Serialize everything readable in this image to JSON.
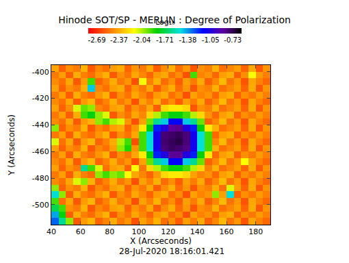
{
  "chart_data": {
    "type": "heatmap",
    "title": "Hinode SOT/SP - MERLIN : Degree of Polarization",
    "xlabel": "X (Arcseconds)",
    "ylabel": "Y (Arcseconds)",
    "annotation": "28-Jul-2020 18:16:01.421",
    "xlim": [
      40,
      190
    ],
    "ylim": [
      -515,
      -395
    ],
    "xticks": [
      40,
      60,
      80,
      100,
      120,
      140,
      160,
      180
    ],
    "yticks": [
      -500,
      -480,
      -460,
      -440,
      -420,
      -400
    ],
    "colorbar": {
      "title": "Log₁₀",
      "range": [
        -2.81,
        -0.6
      ],
      "ticks": [
        -2.69,
        -2.37,
        -2.04,
        -1.71,
        -1.38,
        -1.05,
        -0.73
      ]
    },
    "x": [
      42.5,
      47.5,
      52.5,
      57.5,
      62.5,
      67.5,
      72.5,
      77.5,
      82.5,
      87.5,
      92.5,
      97.5,
      102.5,
      107.5,
      112.5,
      117.5,
      122.5,
      127.5,
      132.5,
      137.5,
      142.5,
      147.5,
      152.5,
      157.5,
      162.5,
      167.5,
      172.5,
      177.5,
      182.5,
      187.5
    ],
    "y": [
      -512.5,
      -507.5,
      -502.5,
      -497.5,
      -492.5,
      -487.5,
      -482.5,
      -477.5,
      -472.5,
      -467.5,
      -462.5,
      -457.5,
      -452.5,
      -447.5,
      -442.5,
      -437.5,
      -432.5,
      -427.5,
      -422.5,
      -417.5,
      -412.5,
      -407.5,
      -402.5,
      -397.5
    ],
    "cells": [
      [
        -1.3,
        -1.6,
        -2.0,
        -2.58,
        -2.41,
        -2.34,
        -2.55,
        -2.47,
        -2.36,
        -2.5,
        -2.43,
        -2.6,
        -2.39,
        -2.48,
        -2.35,
        -2.53,
        -2.44,
        -2.57,
        -2.4,
        -2.49,
        -2.37,
        -2.56,
        -2.46,
        -2.33,
        -2.51,
        -2.42,
        -2.59,
        -2.38,
        -2.47,
        -2.54
      ],
      [
        -1.4,
        -1.8,
        -2.57,
        -2.36,
        -2.48,
        -2.53,
        -2.42,
        -2.35,
        -2.58,
        -2.44,
        -2.51,
        -2.38,
        -2.46,
        -2.55,
        -2.41,
        -2.37,
        -2.52,
        -2.45,
        -2.6,
        -2.39,
        -2.47,
        -2.43,
        -2.54,
        -2.4,
        -2.36,
        -2.56,
        -2.44,
        -2.5,
        -2.41,
        -2.48
      ],
      [
        -1.7,
        -1.9,
        -2.44,
        -2.49,
        -2.35,
        -2.58,
        -2.46,
        -2.52,
        -2.4,
        -2.37,
        -2.55,
        -2.43,
        -2.5,
        -2.38,
        -2.57,
        -2.45,
        -2.36,
        -2.53,
        -2.42,
        -2.59,
        -2.44,
        -2.48,
        -2.35,
        -2.52,
        -2.46,
        -2.4,
        -2.55,
        -2.37,
        -2.58,
        -2.43
      ],
      [
        -1.9,
        -2.52,
        -2.38,
        -2.58,
        -2.41,
        -2.34,
        -2.55,
        -2.47,
        -2.36,
        -2.5,
        -2.43,
        -2.6,
        -2.39,
        -2.48,
        -2.35,
        -2.53,
        -2.44,
        -2.57,
        -2.4,
        -2.49,
        -2.37,
        -2.56,
        -2.46,
        -2.33,
        -2.51,
        -2.42,
        -2.59,
        -2.38,
        -2.47,
        -2.54
      ],
      [
        -1.5,
        -2.0,
        -2.57,
        -2.36,
        -2.48,
        -2.53,
        -2.42,
        -2.35,
        -2.58,
        -2.44,
        -2.51,
        -2.38,
        -2.46,
        -2.55,
        -2.41,
        -2.37,
        -2.52,
        -2.45,
        -2.6,
        -2.39,
        -2.47,
        -2.43,
        -2.0,
        -2.4,
        -1.5,
        -2.56,
        -2.44,
        -2.5,
        -2.41,
        -2.48
      ],
      [
        -2.0,
        -2.56,
        -2.44,
        -2.49,
        -2.35,
        -2.58,
        -2.46,
        -2.52,
        -2.4,
        -2.37,
        -2.55,
        -2.43,
        -2.5,
        -2.38,
        -2.57,
        -2.45,
        -2.36,
        -2.53,
        -2.42,
        -2.59,
        -2.44,
        -2.48,
        -2.35,
        -2.52,
        -2.1,
        -2.4,
        -2.55,
        -2.37,
        -2.58,
        -2.43
      ],
      [
        -2.45,
        -2.52,
        -2.38,
        -2.1,
        -2.0,
        -2.34,
        -2.55,
        -2.47,
        -2.36,
        -2.5,
        -2.43,
        -2.6,
        -2.39,
        -2.48,
        -2.35,
        -2.53,
        -2.44,
        -2.57,
        -2.4,
        -2.49,
        -2.37,
        -2.56,
        -2.46,
        -2.33,
        -2.51,
        -2.42,
        -2.59,
        -2.38,
        -2.47,
        -2.54
      ],
      [
        -2.5,
        -2.4,
        -2.57,
        -2.36,
        -2.48,
        -2.53,
        -2.0,
        -1.9,
        -2.0,
        -1.95,
        -2.15,
        -2.38,
        -2.46,
        -2.55,
        -2.41,
        -2.25,
        -2.2,
        -2.2,
        -2.25,
        -2.39,
        -2.47,
        -2.43,
        -2.54,
        -2.4,
        -2.36,
        -2.56,
        -2.44,
        -2.5,
        -2.41,
        -2.48
      ],
      [
        -2.39,
        -2.56,
        -2.44,
        -2.49,
        -1.6,
        -1.9,
        -2.1,
        -2.52,
        -2.4,
        -2.37,
        -2.55,
        -2.15,
        -2.5,
        -2.25,
        -2.05,
        -1.9,
        -1.8,
        -1.8,
        -1.9,
        -2.05,
        -2.25,
        -2.48,
        -2.35,
        -2.52,
        -2.46,
        -2.4,
        -2.55,
        -2.37,
        -2.58,
        -2.43
      ],
      [
        -2.45,
        -2.52,
        -2.38,
        -2.58,
        -2.41,
        -2.34,
        -2.55,
        -2.47,
        -2.36,
        -2.5,
        -2.43,
        -2.6,
        -2.39,
        -1.95,
        -1.6,
        -1.45,
        -1.15,
        -1.15,
        -1.45,
        -1.6,
        -1.95,
        -2.56,
        -2.46,
        -2.33,
        -2.51,
        -2.42,
        -2.15,
        -2.38,
        -2.47,
        -2.54
      ],
      [
        -2.5,
        -2.4,
        -2.57,
        -2.36,
        -2.48,
        -2.53,
        -2.42,
        -2.35,
        -2.58,
        -2.44,
        -2.51,
        -2.38,
        -2.2,
        -1.8,
        -1.2,
        -1.05,
        -0.85,
        -0.85,
        -1.05,
        -1.2,
        -1.8,
        -2.2,
        -2.54,
        -2.4,
        -2.36,
        -2.56,
        -2.44,
        -2.5,
        -2.41,
        -2.48
      ],
      [
        -2.39,
        -2.56,
        -2.44,
        -2.49,
        -2.35,
        -2.58,
        -2.46,
        -2.52,
        -2.4,
        -2.0,
        -1.85,
        -2.43,
        -1.9,
        -1.5,
        -1.1,
        -0.8,
        -0.76,
        -0.78,
        -0.82,
        -1.1,
        -1.5,
        -1.9,
        -2.35,
        -2.52,
        -2.46,
        -2.4,
        -2.55,
        -2.37,
        -2.58,
        -2.43
      ],
      [
        -2.1,
        -2.52,
        -2.38,
        -2.58,
        -2.41,
        -2.34,
        -2.55,
        -2.47,
        -2.36,
        -2.05,
        -1.9,
        -2.6,
        -1.9,
        -1.5,
        -1.1,
        -0.78,
        -0.75,
        -0.72,
        -0.8,
        -1.1,
        -1.5,
        -1.9,
        -2.46,
        -2.33,
        -2.51,
        -2.42,
        -2.59,
        -2.38,
        -2.47,
        -2.54
      ],
      [
        -2.5,
        -2.4,
        -2.57,
        -2.36,
        -2.48,
        -2.53,
        -2.42,
        -2.35,
        -2.58,
        -2.44,
        -2.51,
        -2.38,
        -1.9,
        -1.5,
        -1.1,
        -0.79,
        -0.77,
        -0.75,
        -0.8,
        -1.1,
        -1.5,
        -1.9,
        -2.54,
        -2.4,
        -2.36,
        -2.56,
        -2.44,
        -2.5,
        -2.41,
        -2.48
      ],
      [
        -2.0,
        -2.56,
        -2.44,
        -2.49,
        -2.35,
        -2.58,
        -2.46,
        -2.52,
        -2.4,
        -2.37,
        -2.55,
        -2.43,
        -2.2,
        -1.8,
        -1.2,
        -1.05,
        -0.86,
        -0.84,
        -1.05,
        -1.2,
        -1.8,
        -2.2,
        -2.35,
        -2.52,
        -2.46,
        -2.4,
        -2.55,
        -2.37,
        -2.58,
        -2.43
      ],
      [
        -2.45,
        -2.52,
        -2.38,
        -2.58,
        -2.41,
        -2.34,
        -2.0,
        -1.9,
        -2.05,
        -2.1,
        -2.43,
        -2.6,
        -2.39,
        -1.95,
        -1.6,
        -1.45,
        -1.15,
        -1.15,
        -1.45,
        -1.6,
        -1.95,
        -2.56,
        -2.46,
        -2.33,
        -2.51,
        -2.42,
        -2.59,
        -2.38,
        -2.47,
        -2.54
      ],
      [
        -2.5,
        -2.4,
        -2.57,
        -2.36,
        -1.9,
        -1.8,
        -2.0,
        -2.1,
        -2.58,
        -2.44,
        -2.51,
        -2.38,
        -2.46,
        -2.25,
        -2.05,
        -1.9,
        -1.8,
        -1.8,
        -1.9,
        -2.05,
        -2.25,
        -2.43,
        -2.54,
        -2.4,
        -2.36,
        -2.56,
        -2.44,
        -2.5,
        -2.41,
        -2.48
      ],
      [
        -2.39,
        -2.56,
        -2.44,
        -2.1,
        -1.95,
        -2.0,
        -2.46,
        -2.52,
        -2.4,
        -2.37,
        -2.55,
        -2.43,
        -2.5,
        -2.38,
        -2.57,
        -2.25,
        -2.2,
        -2.2,
        -2.25,
        -2.59,
        -2.44,
        -2.48,
        -2.35,
        -2.52,
        -2.46,
        -2.4,
        -2.55,
        -2.37,
        -2.58,
        -2.43
      ],
      [
        -2.45,
        -2.52,
        -2.38,
        -2.58,
        -2.41,
        -2.34,
        -2.55,
        -2.47,
        -2.36,
        -2.5,
        -2.43,
        -2.6,
        -2.39,
        -2.48,
        -2.35,
        -2.53,
        -2.44,
        -2.57,
        -2.4,
        -2.49,
        -2.37,
        -2.56,
        -2.46,
        -2.33,
        -2.51,
        -2.42,
        -2.59,
        -2.38,
        -2.47,
        -2.54
      ],
      [
        -2.5,
        -2.4,
        -2.57,
        -2.36,
        -2.48,
        -2.53,
        -2.42,
        -2.35,
        -2.58,
        -2.44,
        -2.51,
        -2.38,
        -2.46,
        -2.55,
        -2.41,
        -2.37,
        -2.52,
        -2.45,
        -2.6,
        -2.39,
        -2.47,
        -2.43,
        -2.54,
        -2.4,
        -2.36,
        -2.56,
        -2.44,
        -2.5,
        -2.41,
        -2.48
      ],
      [
        -2.39,
        -2.56,
        -2.44,
        -2.49,
        -2.35,
        -1.45,
        -2.46,
        -2.52,
        -2.4,
        -2.37,
        -2.55,
        -2.43,
        -2.5,
        -2.38,
        -2.57,
        -2.45,
        -2.36,
        -2.53,
        -2.42,
        -2.59,
        -2.44,
        -2.48,
        -2.35,
        -2.52,
        -2.46,
        -2.4,
        -2.55,
        -2.37,
        -2.58,
        -2.43
      ],
      [
        -2.45,
        -2.52,
        -2.38,
        -2.58,
        -2.41,
        -1.9,
        -2.55,
        -2.47,
        -2.36,
        -2.5,
        -2.43,
        -2.6,
        -2.15,
        -2.48,
        -2.35,
        -2.53,
        -2.44,
        -2.57,
        -2.4,
        -2.49,
        -2.37,
        -2.56,
        -2.46,
        -2.33,
        -2.51,
        -2.42,
        -2.59,
        -2.38,
        -2.47,
        -2.54
      ],
      [
        -2.5,
        -2.4,
        -2.57,
        -2.36,
        -2.48,
        -2.53,
        -2.42,
        -2.35,
        -2.58,
        -2.44,
        -2.51,
        -2.38,
        -2.46,
        -2.55,
        -2.41,
        -2.37,
        -2.52,
        -2.45,
        -2.6,
        -1.9,
        -2.47,
        -2.43,
        -2.54,
        -2.4,
        -2.36,
        -2.56,
        -2.44,
        -2.15,
        -2.41,
        -2.48
      ],
      [
        -2.39,
        -2.56,
        -2.44,
        -2.49,
        -2.35,
        -2.58,
        -2.46,
        -2.52,
        -2.4,
        -2.37,
        -2.55,
        -2.43,
        -2.5,
        -2.38,
        -2.57,
        -2.45,
        -2.36,
        -2.53,
        -2.42,
        -2.59,
        -2.44,
        -2.48,
        -2.35,
        -2.52,
        -2.46,
        -2.4,
        -2.55,
        -2.37,
        -2.58,
        -2.43
      ]
    ]
  }
}
